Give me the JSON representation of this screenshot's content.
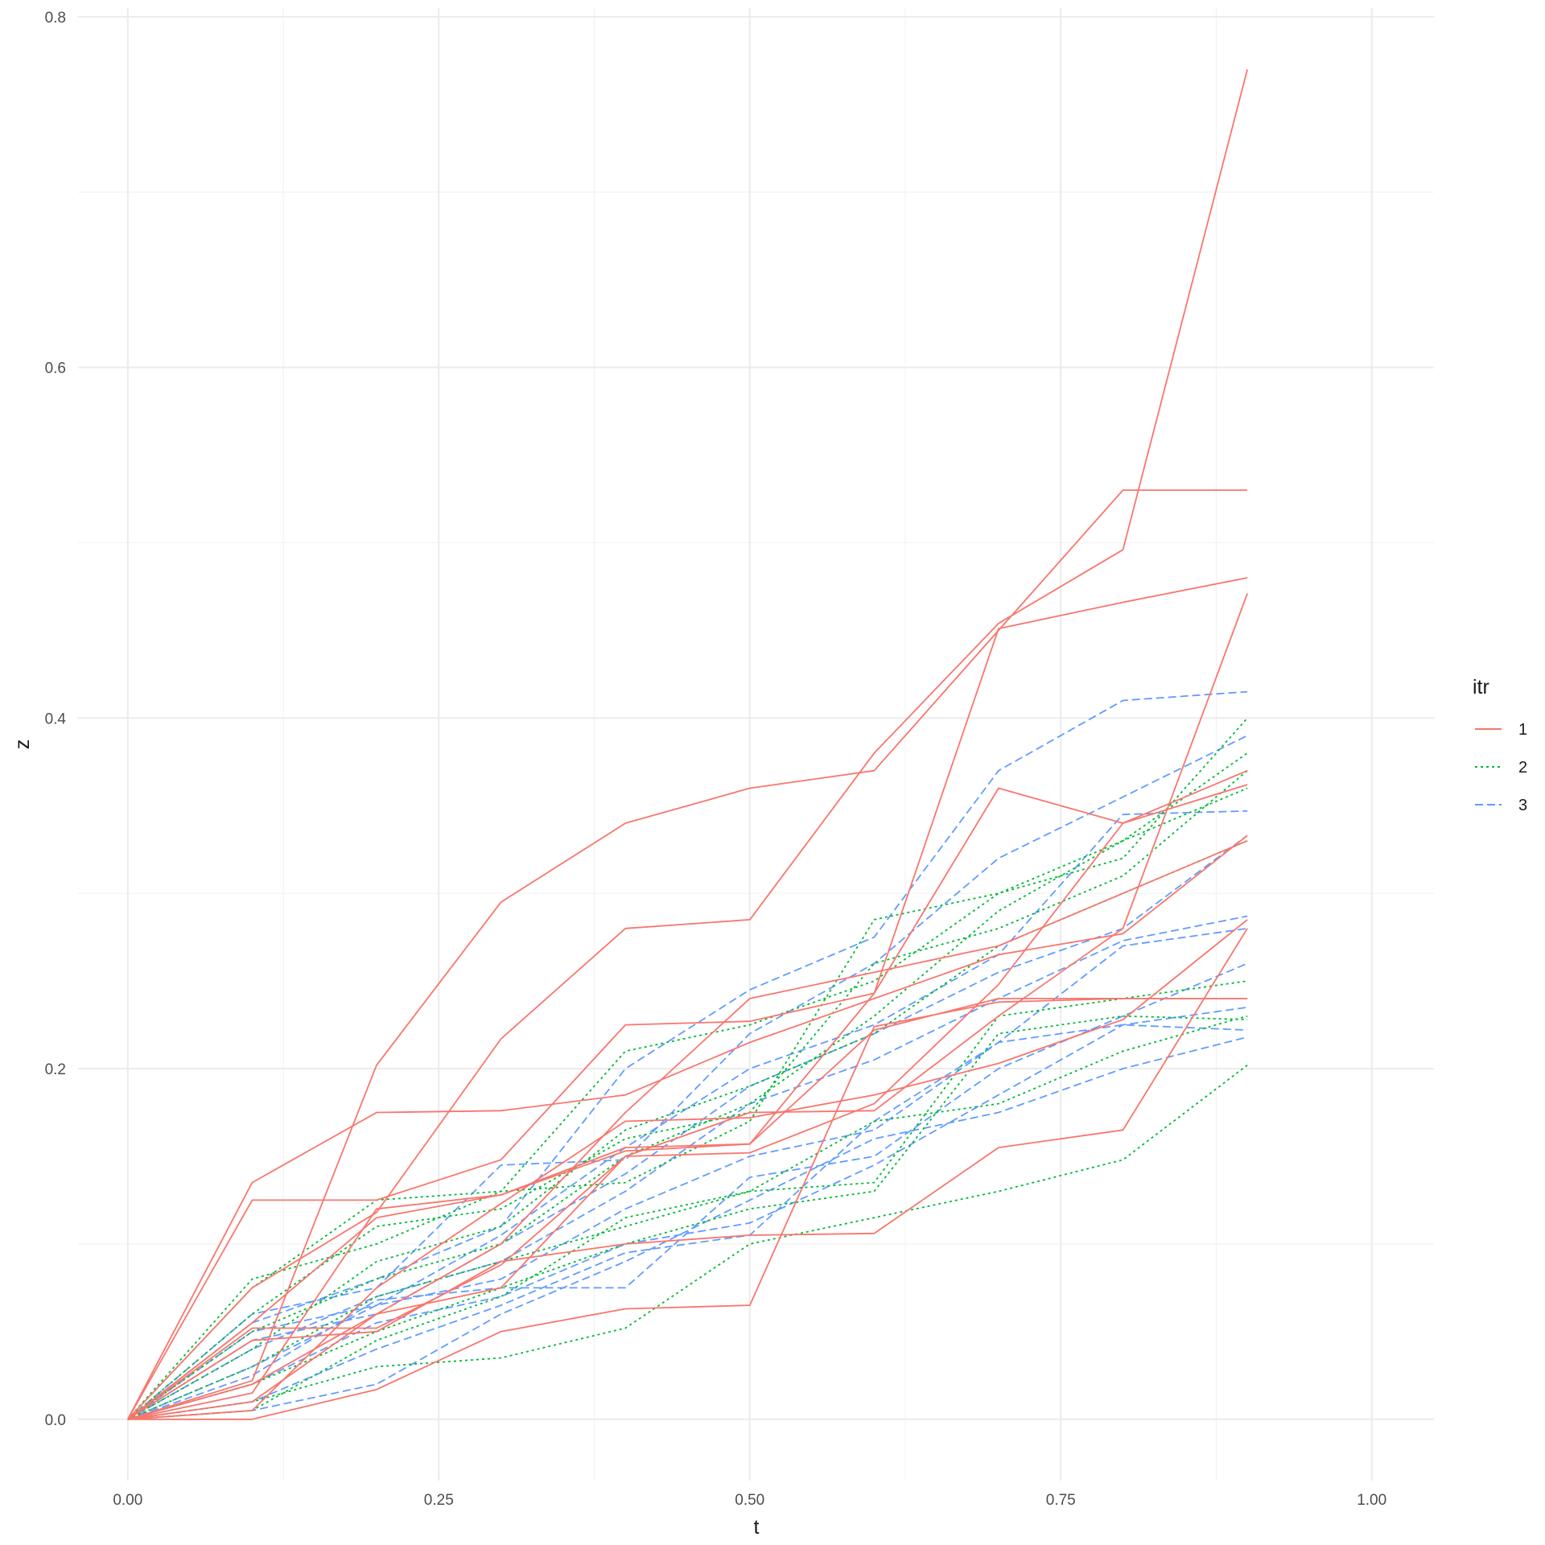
{
  "chart_data": {
    "type": "line",
    "xlabel": "t",
    "ylabel": "z",
    "xlim": [
      -0.04,
      1.05
    ],
    "ylim": [
      -0.035,
      0.805
    ],
    "x_ticks": [
      0.0,
      0.25,
      0.5,
      0.75,
      1.0
    ],
    "x_tick_labels": [
      "0.00",
      "0.25",
      "0.50",
      "0.75",
      "1.00"
    ],
    "y_ticks": [
      0.0,
      0.2,
      0.4,
      0.6,
      0.8
    ],
    "y_tick_labels": [
      "0.0",
      "0.2",
      "0.4",
      "0.6",
      "0.8"
    ],
    "grid": true,
    "legend": {
      "title": "itr",
      "position": "right",
      "entries": [
        {
          "label": "1",
          "color": "#F8766D",
          "dash": "solid"
        },
        {
          "label": "2",
          "color": "#00BA38",
          "dash": "dotted"
        },
        {
          "label": "3",
          "color": "#619CFF",
          "dash": "dashed"
        }
      ]
    },
    "x": [
      0.0,
      0.1,
      0.2,
      0.3,
      0.4,
      0.5,
      0.6,
      0.7,
      0.8,
      0.9
    ],
    "series": [
      {
        "group": "1",
        "values": [
          0,
          0.135,
          0.175,
          0.176,
          0.185,
          0.215,
          0.24,
          0.265,
          0.277,
          0.333
        ]
      },
      {
        "group": "1",
        "values": [
          0,
          0.125,
          0.125,
          0.148,
          0.225,
          0.227,
          0.243,
          0.451,
          0.466,
          0.48
        ]
      },
      {
        "group": "1",
        "values": [
          0,
          0.022,
          0.202,
          0.295,
          0.34,
          0.36,
          0.37,
          0.45,
          0.53,
          0.53
        ]
      },
      {
        "group": "1",
        "values": [
          0,
          0.075,
          0.118,
          0.217,
          0.28,
          0.285,
          0.38,
          0.454,
          0.496,
          0.77
        ]
      },
      {
        "group": "1",
        "values": [
          0,
          0.005,
          0.075,
          0.123,
          0.17,
          0.172,
          0.185,
          0.203,
          0.228,
          0.285
        ]
      },
      {
        "group": "1",
        "values": [
          0,
          0.015,
          0.12,
          0.128,
          0.153,
          0.157,
          0.243,
          0.36,
          0.34,
          0.362
        ]
      },
      {
        "group": "1",
        "values": [
          0,
          0.045,
          0.05,
          0.09,
          0.1,
          0.105,
          0.106,
          0.155,
          0.165,
          0.28
        ]
      },
      {
        "group": "1",
        "values": [
          0,
          0.0,
          0.017,
          0.05,
          0.063,
          0.065,
          0.224,
          0.238,
          0.24,
          0.24
        ]
      },
      {
        "group": "1",
        "values": [
          0,
          0.052,
          0.052,
          0.088,
          0.15,
          0.152,
          0.18,
          0.248,
          0.34,
          0.37
        ]
      },
      {
        "group": "1",
        "values": [
          0,
          0.02,
          0.06,
          0.1,
          0.175,
          0.24,
          0.255,
          0.27,
          0.3,
          0.33
        ]
      },
      {
        "group": "1",
        "values": [
          0,
          0.01,
          0.06,
          0.075,
          0.15,
          0.175,
          0.176,
          0.23,
          0.28,
          0.471
        ]
      },
      {
        "group": "1",
        "values": [
          0,
          0.055,
          0.115,
          0.128,
          0.155,
          0.157,
          0.222,
          0.24,
          0.24,
          0.24
        ]
      },
      {
        "group": "2",
        "values": [
          0,
          0.08,
          0.1,
          0.13,
          0.135,
          0.17,
          0.285,
          0.3,
          0.32,
          0.4
        ]
      },
      {
        "group": "2",
        "values": [
          0,
          0.075,
          0.125,
          0.13,
          0.21,
          0.225,
          0.25,
          0.3,
          0.33,
          0.38
        ]
      },
      {
        "group": "2",
        "values": [
          0,
          0.06,
          0.11,
          0.12,
          0.16,
          0.175,
          0.26,
          0.28,
          0.31,
          0.37
        ]
      },
      {
        "group": "2",
        "values": [
          0,
          0.04,
          0.09,
          0.11,
          0.165,
          0.19,
          0.22,
          0.27,
          0.3,
          0.33
        ]
      },
      {
        "group": "2",
        "values": [
          0,
          0.03,
          0.07,
          0.09,
          0.11,
          0.13,
          0.135,
          0.23,
          0.24,
          0.25
        ]
      },
      {
        "group": "2",
        "values": [
          0,
          0.02,
          0.05,
          0.075,
          0.1,
          0.12,
          0.13,
          0.22,
          0.23,
          0.228
        ]
      },
      {
        "group": "2",
        "values": [
          0,
          0.01,
          0.03,
          0.035,
          0.052,
          0.1,
          0.115,
          0.13,
          0.148,
          0.202
        ]
      },
      {
        "group": "2",
        "values": [
          0,
          0.005,
          0.045,
          0.07,
          0.115,
          0.13,
          0.17,
          0.18,
          0.21,
          0.23
        ]
      },
      {
        "group": "2",
        "values": [
          0,
          0.05,
          0.08,
          0.1,
          0.15,
          0.18,
          0.23,
          0.29,
          0.33,
          0.36
        ]
      },
      {
        "group": "3",
        "values": [
          0,
          0.055,
          0.08,
          0.11,
          0.2,
          0.245,
          0.275,
          0.37,
          0.41,
          0.415
        ]
      },
      {
        "group": "3",
        "values": [
          0,
          0.06,
          0.075,
          0.145,
          0.148,
          0.22,
          0.26,
          0.32,
          0.355,
          0.39
        ]
      },
      {
        "group": "3",
        "values": [
          0,
          0.05,
          0.065,
          0.105,
          0.155,
          0.2,
          0.225,
          0.265,
          0.345,
          0.347
        ]
      },
      {
        "group": "3",
        "values": [
          0,
          0.045,
          0.06,
          0.1,
          0.14,
          0.19,
          0.22,
          0.255,
          0.28,
          0.333
        ]
      },
      {
        "group": "3",
        "values": [
          0,
          0.04,
          0.07,
          0.09,
          0.13,
          0.18,
          0.205,
          0.24,
          0.273,
          0.287
        ]
      },
      {
        "group": "3",
        "values": [
          0,
          0.03,
          0.065,
          0.08,
          0.12,
          0.15,
          0.165,
          0.215,
          0.27,
          0.28
        ]
      },
      {
        "group": "3",
        "values": [
          0,
          0.025,
          0.068,
          0.075,
          0.075,
          0.138,
          0.15,
          0.2,
          0.23,
          0.26
        ]
      },
      {
        "group": "3",
        "values": [
          0,
          0.02,
          0.055,
          0.07,
          0.1,
          0.112,
          0.145,
          0.185,
          0.225,
          0.235
        ]
      },
      {
        "group": "3",
        "values": [
          0,
          0.01,
          0.04,
          0.065,
          0.095,
          0.105,
          0.17,
          0.215,
          0.225,
          0.222
        ]
      },
      {
        "group": "3",
        "values": [
          0,
          0.005,
          0.02,
          0.06,
          0.09,
          0.125,
          0.16,
          0.175,
          0.2,
          0.218
        ]
      }
    ]
  }
}
